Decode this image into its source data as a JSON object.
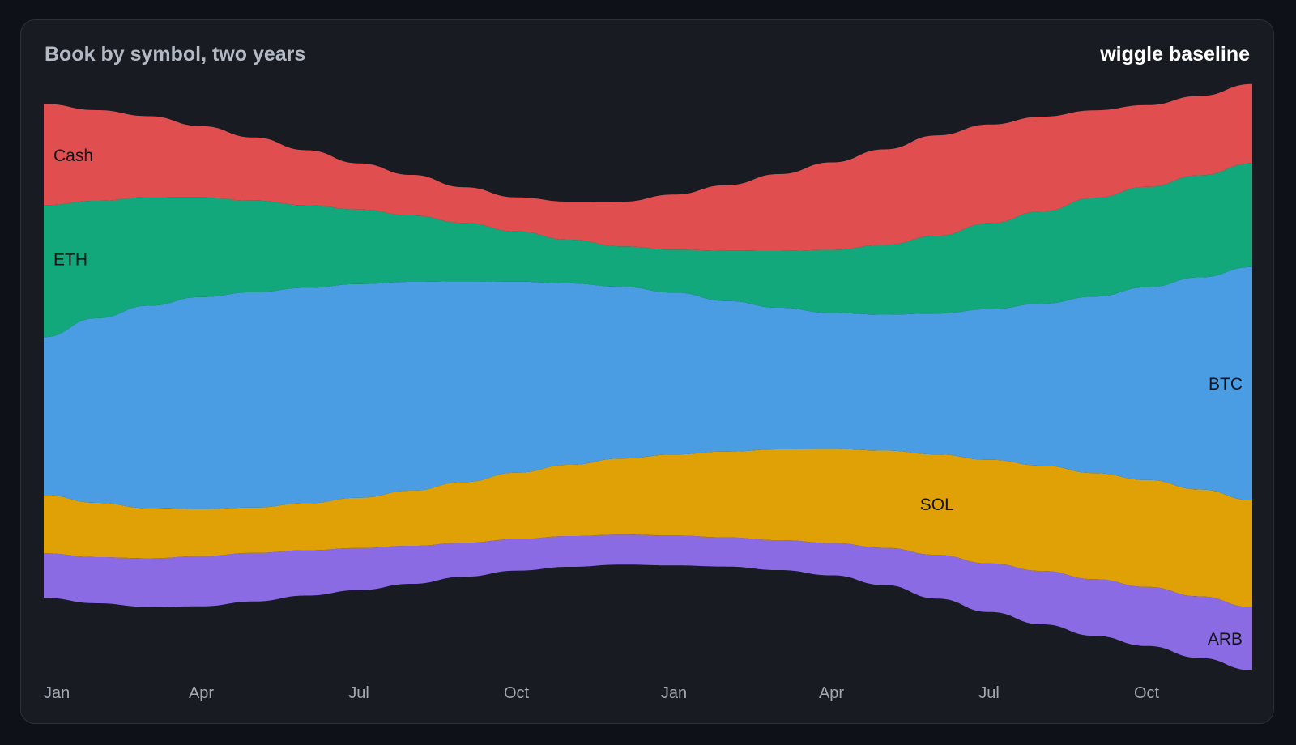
{
  "header": {
    "title": "Book by symbol, two years",
    "mode_label": "wiggle baseline"
  },
  "chart_data": {
    "type": "area",
    "subtype": "streamgraph",
    "baseline": "wiggle",
    "title": "Book by symbol, two years",
    "x_tick_labels": [
      "Jan",
      "Apr",
      "Jul",
      "Oct",
      "Jan",
      "Apr",
      "Jul",
      "Oct"
    ],
    "x": [
      0,
      1,
      2,
      3,
      4,
      5,
      6,
      7,
      8,
      9,
      10,
      11,
      12,
      13,
      14,
      15,
      16,
      17,
      18,
      19,
      20,
      21,
      22,
      23
    ],
    "series": [
      {
        "name": "ARB",
        "color": "#8b6be3",
        "label_side": "end",
        "values": [
          55,
          57,
          60,
          62,
          60,
          56,
          52,
          47,
          42,
          39,
          38,
          37,
          37,
          36,
          37,
          40,
          46,
          54,
          60,
          66,
          70,
          73,
          76,
          78
        ]
      },
      {
        "name": "SOL",
        "color": "#e0a107",
        "label_side": "middle",
        "values": [
          72,
          67,
          62,
          58,
          56,
          58,
          62,
          68,
          75,
          82,
          88,
          94,
          100,
          106,
          112,
          116,
          120,
          124,
          128,
          130,
          131,
          132,
          132,
          132
        ]
      },
      {
        "name": "BTC",
        "color": "#4a9de3",
        "label_side": "end",
        "values": [
          195,
          228,
          250,
          262,
          266,
          266,
          264,
          258,
          248,
          236,
          224,
          212,
          200,
          186,
          175,
          168,
          168,
          174,
          186,
          200,
          218,
          238,
          262,
          288
        ]
      },
      {
        "name": "ETH",
        "color": "#13a87b",
        "label_side": "start",
        "values": [
          163,
          145,
          134,
          123,
          113,
          102,
          92,
          82,
          72,
          62,
          54,
          50,
          53,
          62,
          70,
          78,
          86,
          96,
          106,
          114,
          122,
          124,
          126,
          128
        ]
      },
      {
        "name": "Cash",
        "color": "#e04e4f",
        "label_side": "start",
        "values": [
          125,
          112,
          100,
          88,
          78,
          68,
          57,
          50,
          44,
          42,
          47,
          55,
          68,
          81,
          95,
          108,
          118,
          124,
          122,
          117,
          108,
          101,
          98,
          98
        ]
      }
    ]
  }
}
